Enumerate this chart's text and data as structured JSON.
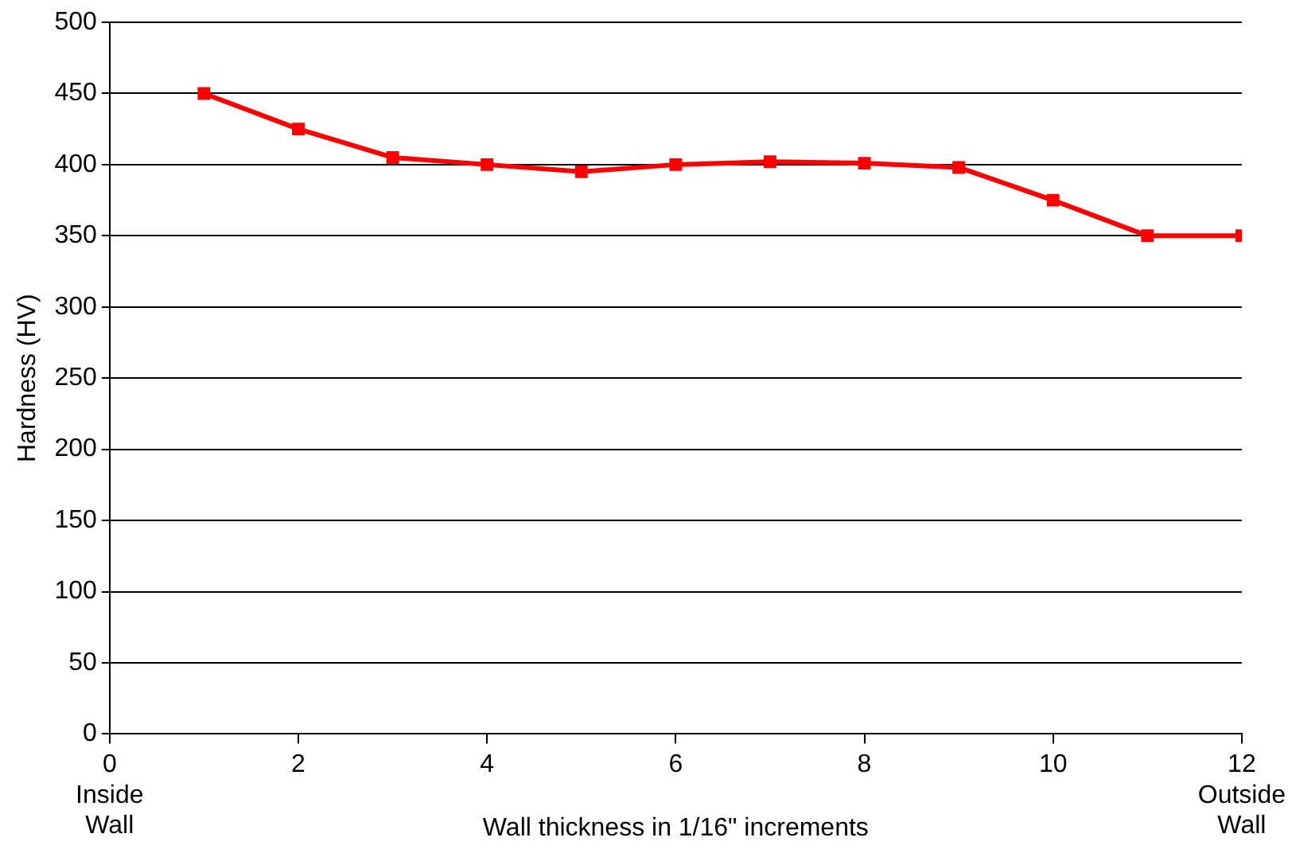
{
  "chart_data": {
    "type": "line",
    "xlabel": "Wall thickness in 1/16\" increments",
    "ylabel": "Hardness (HV)",
    "x": [
      1,
      2,
      3,
      4,
      5,
      6,
      7,
      8,
      9,
      10,
      11,
      12
    ],
    "series": [
      {
        "color": "#ff0000",
        "values": [
          450,
          425,
          405,
          400,
          395,
          400,
          402,
          401,
          398,
          375,
          350,
          350
        ]
      }
    ],
    "xlim": [
      0,
      12
    ],
    "xticks": [
      {
        "value": 0,
        "label": "0\nInside\nWall"
      },
      2,
      4,
      6,
      8,
      10,
      {
        "value": 12,
        "label": "12\nOutside\nWall"
      }
    ],
    "ylim": [
      0,
      500
    ],
    "yticks": [
      0,
      50,
      100,
      150,
      200,
      250,
      300,
      350,
      400,
      450,
      500
    ],
    "grid": "y",
    "legend": false,
    "marker": "square",
    "line_style": "solid"
  }
}
